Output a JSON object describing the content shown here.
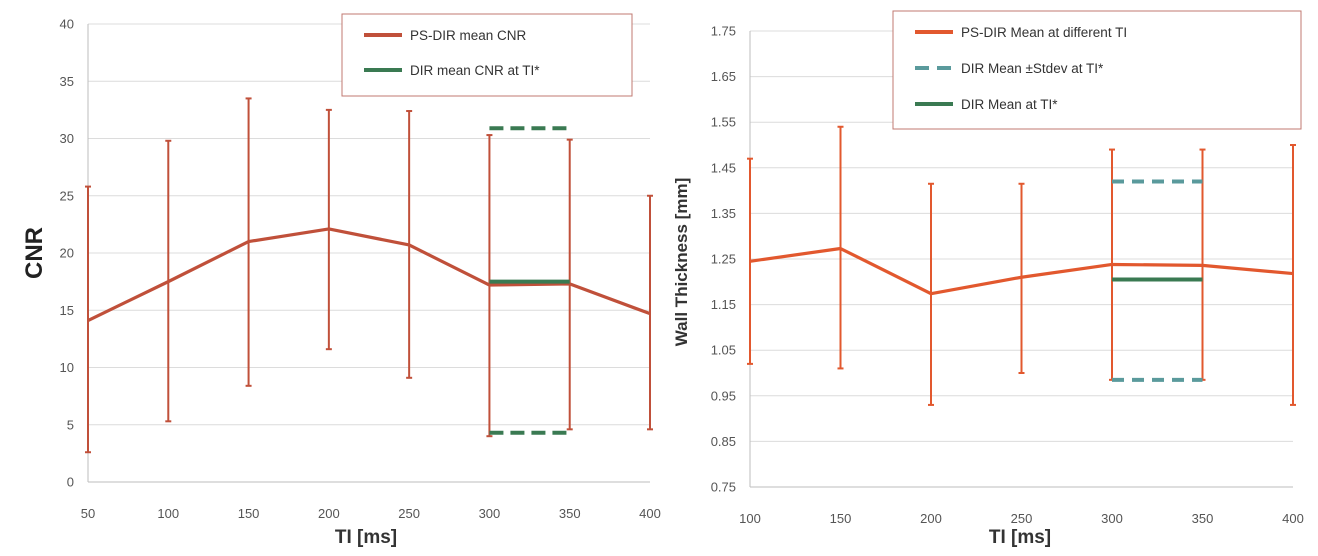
{
  "chart_data": [
    {
      "type": "line",
      "title": "",
      "xlabel": "TI [ms]",
      "ylabel": "CNR",
      "xlim": [
        50,
        400
      ],
      "ylim": [
        0,
        40
      ],
      "x_ticks": [
        "50",
        "100",
        "150",
        "200",
        "250",
        "300",
        "350",
        "400"
      ],
      "y_ticks": [
        "0",
        "5",
        "10",
        "15",
        "20",
        "25",
        "30",
        "35",
        "40"
      ],
      "grid": true,
      "legend_position": "top-right",
      "series": [
        {
          "name": "PS-DIR mean CNR",
          "color": "#c0503a",
          "x": [
            50,
            100,
            150,
            200,
            250,
            300,
            350,
            400
          ],
          "y": [
            14.1,
            17.5,
            21.0,
            22.1,
            20.7,
            17.2,
            17.3,
            14.7
          ],
          "err_high": [
            25.8,
            29.8,
            33.5,
            32.5,
            32.4,
            30.3,
            29.9,
            25.0
          ],
          "err_low": [
            2.6,
            5.3,
            8.4,
            11.6,
            9.1,
            4.0,
            4.6,
            4.6
          ]
        },
        {
          "name": "DIR mean CNR at TI*",
          "color": "#3a7a52",
          "x": [
            300,
            350
          ],
          "y": [
            17.5,
            17.5
          ],
          "band_high": 30.9,
          "band_low": 4.3
        }
      ]
    },
    {
      "type": "line",
      "title": "",
      "xlabel": "TI [ms]",
      "ylabel": "Wall Thickness [mm]",
      "xlim": [
        100,
        400
      ],
      "ylim": [
        0.75,
        1.75
      ],
      "x_ticks": [
        "100",
        "150",
        "200",
        "250",
        "300",
        "350",
        "400"
      ],
      "y_ticks": [
        "0.75",
        "0.85",
        "0.95",
        "1.05",
        "1.15",
        "1.25",
        "1.35",
        "1.45",
        "1.55",
        "1.65",
        "1.75"
      ],
      "grid": true,
      "legend_position": "top-right",
      "series": [
        {
          "name": "PS-DIR Mean at different  TI",
          "color": "#e2582e",
          "x": [
            100,
            150,
            200,
            250,
            300,
            350,
            400
          ],
          "y": [
            1.245,
            1.273,
            1.174,
            1.21,
            1.238,
            1.236,
            1.218
          ],
          "err_high": [
            1.47,
            1.54,
            1.415,
            1.415,
            1.49,
            1.49,
            1.5
          ],
          "err_low": [
            1.02,
            1.01,
            0.93,
            1.0,
            0.985,
            0.985,
            0.93
          ]
        },
        {
          "name": "DIR Mean ±Stdev at TI*",
          "color": "#5a9a9c",
          "x": [
            300,
            350
          ],
          "band_high": 1.42,
          "band_low": 0.985
        },
        {
          "name": "DIR Mean at TI*",
          "color": "#3a7a52",
          "x": [
            300,
            350
          ],
          "y": [
            1.205,
            1.205
          ]
        }
      ]
    }
  ]
}
